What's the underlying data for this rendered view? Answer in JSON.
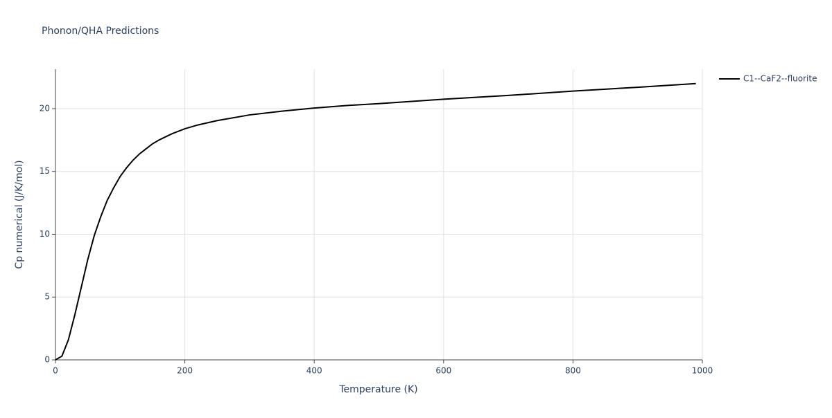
{
  "chart_data": {
    "type": "line",
    "title": "Phonon/QHA Predictions",
    "x_label": "Temperature (K)",
    "y_label": "Cp numerical (J/K/mol)",
    "x": [
      0,
      10,
      20,
      30,
      40,
      50,
      60,
      70,
      80,
      90,
      100,
      110,
      120,
      130,
      140,
      150,
      160,
      170,
      180,
      190,
      200,
      220,
      250,
      300,
      350,
      400,
      450,
      500,
      600,
      700,
      800,
      900,
      990
    ],
    "series": [
      {
        "name": "C1--CaF2--fluorite",
        "color": "#000000",
        "values": [
          0,
          0.3,
          1.6,
          3.6,
          5.8,
          8.0,
          9.9,
          11.4,
          12.7,
          13.7,
          14.6,
          15.3,
          15.9,
          16.4,
          16.8,
          17.2,
          17.5,
          17.75,
          18.0,
          18.2,
          18.4,
          18.7,
          19.05,
          19.5,
          19.8,
          20.05,
          20.25,
          20.4,
          20.75,
          21.05,
          21.4,
          21.7,
          22.0
        ]
      }
    ],
    "xlim": [
      0,
      1000
    ],
    "xticks": [
      0,
      200,
      400,
      600,
      800,
      1000
    ],
    "ylim": [
      0,
      23.14
    ],
    "yticks": [
      0,
      5,
      10,
      15,
      20
    ],
    "grid": true,
    "legend": "right"
  }
}
